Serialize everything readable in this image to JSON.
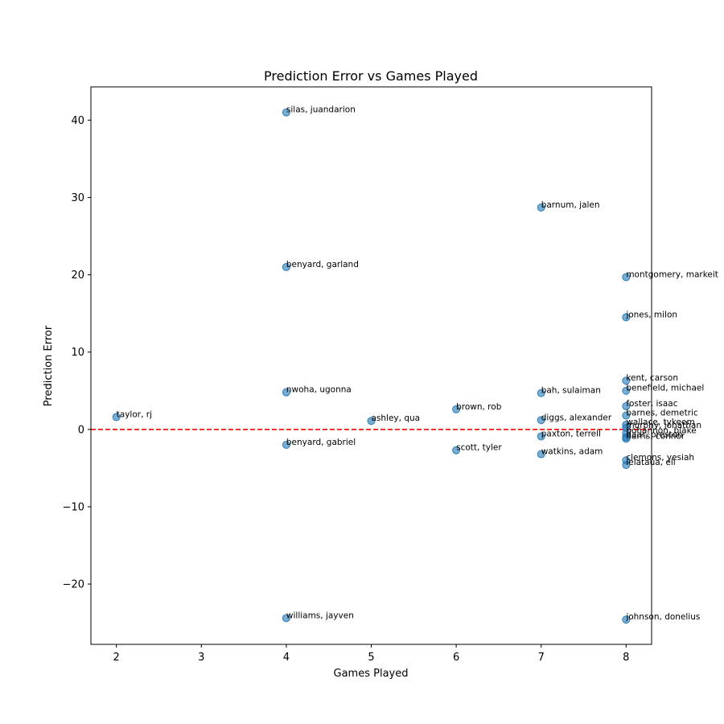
{
  "chart_data": {
    "type": "scatter",
    "title": "Prediction Error vs Games Played",
    "xlabel": "Games Played",
    "ylabel": "Prediction Error",
    "xlim": [
      1.7,
      8.3
    ],
    "ylim": [
      -27.8,
      44.3
    ],
    "xticks": [
      2,
      3,
      4,
      5,
      6,
      7,
      8
    ],
    "yticks": [
      -20,
      -10,
      0,
      10,
      20,
      30,
      40
    ],
    "ytick_labels": [
      "−20",
      "−10",
      "0",
      "10",
      "20",
      "30",
      "40"
    ],
    "reference_line": {
      "y": 0,
      "style": "dashed",
      "color": "#ff0000"
    },
    "point_color": "#1f77b4",
    "grid": false,
    "points": [
      {
        "name": "silas, juandarion",
        "x": 4,
        "y": 41.0
      },
      {
        "name": "barnum, jalen",
        "x": 7,
        "y": 28.7
      },
      {
        "name": "benyard, garland",
        "x": 4,
        "y": 21.0
      },
      {
        "name": "montgomery, markeit",
        "x": 8,
        "y": 19.7
      },
      {
        "name": "jones, milon",
        "x": 8,
        "y": 14.5
      },
      {
        "name": "kent, carson",
        "x": 8,
        "y": 6.3
      },
      {
        "name": "benefield, michael",
        "x": 8,
        "y": 5.0
      },
      {
        "name": "nwoha, ugonna",
        "x": 4,
        "y": 4.8
      },
      {
        "name": "bah, sulaiman",
        "x": 7,
        "y": 4.7
      },
      {
        "name": "foster, isaac",
        "x": 8,
        "y": 3.0
      },
      {
        "name": "brown, rob",
        "x": 6,
        "y": 2.6
      },
      {
        "name": "barnes, demetric",
        "x": 8,
        "y": 1.8
      },
      {
        "name": "taylor, rj",
        "x": 2,
        "y": 1.6
      },
      {
        "name": "diggs, alexander",
        "x": 7,
        "y": 1.2
      },
      {
        "name": "ashley, qua",
        "x": 5,
        "y": 1.1
      },
      {
        "name": "wallace, tykeem",
        "x": 8,
        "y": 0.6
      },
      {
        "name": "murphy, jonathan",
        "x": 8,
        "y": 0.2
      },
      {
        "name": "bohannon, blake",
        "x": 8,
        "y": -0.5
      },
      {
        "name": "paxton, terrell",
        "x": 7,
        "y": -0.9
      },
      {
        "name": "daar, preston",
        "x": 8,
        "y": -1.0
      },
      {
        "name": "harris, connor",
        "x": 8,
        "y": -1.2
      },
      {
        "name": "benyard, gabriel",
        "x": 4,
        "y": -2.0
      },
      {
        "name": "scott, tyler",
        "x": 6,
        "y": -2.7
      },
      {
        "name": "watkins, adam",
        "x": 7,
        "y": -3.2
      },
      {
        "name": "clemons, yesiah",
        "x": 8,
        "y": -4.0
      },
      {
        "name": "leiataua, eli",
        "x": 8,
        "y": -4.6
      },
      {
        "name": "williams, jayven",
        "x": 4,
        "y": -24.4
      },
      {
        "name": "johnson, donelius",
        "x": 8,
        "y": -24.6
      }
    ]
  }
}
